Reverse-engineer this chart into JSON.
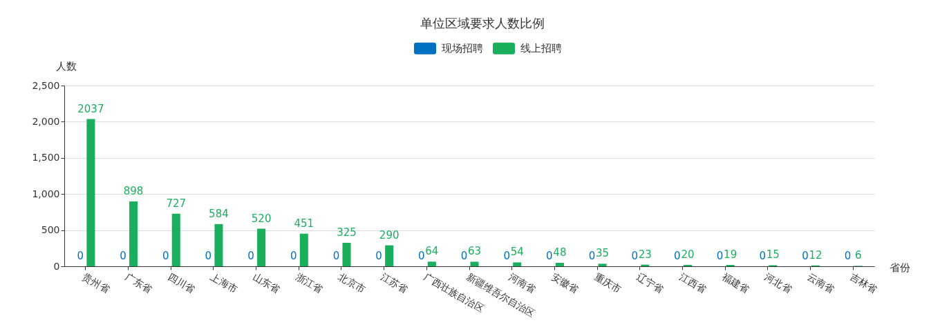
{
  "chart_data": {
    "type": "bar",
    "title": "单位区域要求人数比例",
    "xlabel": "省份",
    "ylabel": "人数",
    "categories": [
      "贵州省",
      "广东省",
      "四川省",
      "上海市",
      "山东省",
      "浙江省",
      "北京市",
      "江苏省",
      "广西壮族自治区",
      "新疆维吾尔自治区",
      "河南省",
      "安徽省",
      "重庆市",
      "辽宁省",
      "江西省",
      "福建省",
      "河北省",
      "云南省",
      "吉林省"
    ],
    "series": [
      {
        "name": "现场招聘",
        "color": "#0070c0",
        "values": [
          0,
          0,
          0,
          0,
          0,
          0,
          0,
          0,
          0,
          0,
          0,
          0,
          0,
          0,
          0,
          0,
          0,
          0,
          0
        ]
      },
      {
        "name": "线上招聘",
        "color": "#1aaf5c",
        "values": [
          2037,
          898,
          727,
          584,
          520,
          451,
          325,
          290,
          64,
          63,
          54,
          48,
          35,
          23,
          20,
          19,
          15,
          12,
          6
        ]
      }
    ],
    "ylim": [
      0,
      2500
    ],
    "yticks": [
      0,
      500,
      {
        "value": 1000,
        "label": "1,000"
      },
      {
        "value": 1500,
        "label": "1,500"
      },
      {
        "value": 2000,
        "label": "2,000"
      },
      {
        "value": 2500,
        "label": "2,500"
      }
    ],
    "grid": "y",
    "legend": "top",
    "data_labels": true
  }
}
